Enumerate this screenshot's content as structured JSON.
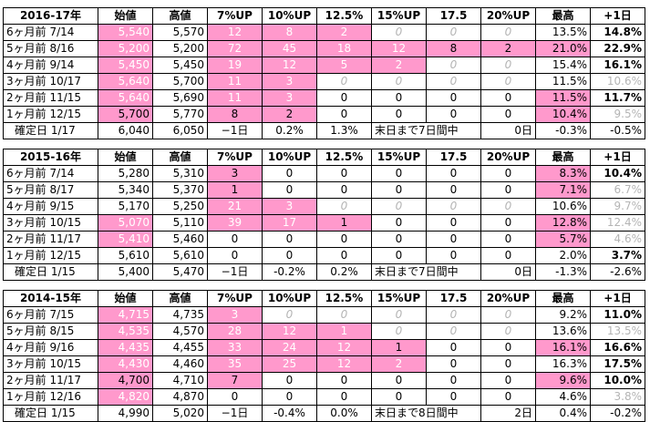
{
  "header_row": [
    "始値",
    "高値",
    "7%UP",
    "10%UP",
    "12.5%",
    "15%UP",
    "17.5",
    "20%UP",
    "最高",
    "+1日"
  ],
  "blocks": [
    {
      "year": "2016-17年",
      "rows": [
        {
          "label": "6ヶ月前  7/14",
          "cells": [
            "5,540",
            "5,570",
            "12",
            "8",
            "2",
            "0",
            "0",
            "0",
            "13.5%",
            "14.8%"
          ]
        },
        {
          "label": "5ヶ月前  8/16",
          "cells": [
            "5,200",
            "5,200",
            "72",
            "45",
            "18",
            "12",
            "8",
            "2",
            "21.0%",
            "22.9%"
          ]
        },
        {
          "label": "4ヶ月前  9/14",
          "cells": [
            "5,450",
            "5,450",
            "19",
            "12",
            "5",
            "2",
            "0",
            "0",
            "15.4%",
            "16.1%"
          ]
        },
        {
          "label": "3ヶ月前  10/17",
          "cells": [
            "5,640",
            "5,700",
            "11",
            "3",
            "0",
            "0",
            "0",
            "0",
            "11.5%",
            "10.6%"
          ]
        },
        {
          "label": "2ヶ月前  11/15",
          "cells": [
            "5,640",
            "5,690",
            "11",
            "3",
            "0",
            "0",
            "0",
            "0",
            "11.5%",
            "11.7%"
          ]
        },
        {
          "label": "1ヶ月前  12/15",
          "cells": [
            "5,700",
            "5,770",
            "8",
            "2",
            "0",
            "0",
            "0",
            "0",
            "10.4%",
            "9.5%"
          ]
        },
        {
          "label": "確定日  1/17",
          "cells": [
            "6,040",
            "6,050",
            "−1日",
            "0.2%",
            "1.3%",
            "末日まで7日間中",
            "",
            "0日",
            "-0.3%",
            "-0.5%"
          ]
        }
      ]
    },
    {
      "year": "2015-16年",
      "rows": [
        {
          "label": "6ヶ月前  7/14",
          "cells": [
            "5,280",
            "5,310",
            "3",
            "0",
            "0",
            "0",
            "0",
            "0",
            "8.3%",
            "10.4%"
          ]
        },
        {
          "label": "5ヶ月前  8/17",
          "cells": [
            "5,340",
            "5,370",
            "1",
            "0",
            "0",
            "0",
            "0",
            "0",
            "7.1%",
            "6.7%"
          ]
        },
        {
          "label": "4ヶ月前  9/15",
          "cells": [
            "5,170",
            "5,250",
            "21",
            "3",
            "0",
            "0",
            "0",
            "0",
            "10.6%",
            "9.7%"
          ]
        },
        {
          "label": "3ヶ月前  10/15",
          "cells": [
            "5,070",
            "5,110",
            "39",
            "17",
            "1",
            "0",
            "0",
            "0",
            "12.8%",
            "12.4%"
          ]
        },
        {
          "label": "2ヶ月前  11/17",
          "cells": [
            "5,410",
            "5,460",
            "0",
            "0",
            "0",
            "0",
            "0",
            "0",
            "5.7%",
            "4.6%"
          ]
        },
        {
          "label": "1ヶ月前  12/15",
          "cells": [
            "5,610",
            "5,610",
            "0",
            "0",
            "0",
            "0",
            "0",
            "0",
            "2.0%",
            "3.7%"
          ]
        },
        {
          "label": "確定日  1/15",
          "cells": [
            "5,400",
            "5,470",
            "−1日",
            "-0.2%",
            "0.2%",
            "末日まで7日間中",
            "",
            "0日",
            "-1.3%",
            "-2.6%"
          ]
        }
      ]
    },
    {
      "year": "2014-15年",
      "rows": [
        {
          "label": "6ヶ月前  7/15",
          "cells": [
            "4,715",
            "4,735",
            "3",
            "0",
            "0",
            "0",
            "0",
            "0",
            "9.2%",
            "11.0%"
          ]
        },
        {
          "label": "5ヶ月前  8/15",
          "cells": [
            "4,535",
            "4,570",
            "28",
            "12",
            "1",
            "0",
            "0",
            "0",
            "13.6%",
            "13.5%"
          ]
        },
        {
          "label": "4ヶ月前  9/16",
          "cells": [
            "4,435",
            "4,455",
            "33",
            "24",
            "12",
            "1",
            "0",
            "0",
            "16.1%",
            "16.6%"
          ]
        },
        {
          "label": "3ヶ月前  10/15",
          "cells": [
            "4,430",
            "4,460",
            "35",
            "25",
            "12",
            "2",
            "0",
            "0",
            "16.3%",
            "17.5%"
          ]
        },
        {
          "label": "2ヶ月前  11/17",
          "cells": [
            "4,700",
            "4,710",
            "7",
            "0",
            "0",
            "0",
            "0",
            "0",
            "9.6%",
            "10.0%"
          ]
        },
        {
          "label": "1ヶ月前  12/16",
          "cells": [
            "4,820",
            "4,870",
            "0",
            "0",
            "0",
            "0",
            "0",
            "0",
            "4.6%",
            "3.8%"
          ]
        },
        {
          "label": "確定日  1/15",
          "cells": [
            "4,990",
            "5,020",
            "−1日",
            "-0.4%",
            "0.0%",
            "末日まで8日間中",
            "",
            "2日",
            "0.4%",
            "-0.2%"
          ]
        }
      ]
    }
  ],
  "colors": {
    "highlight": "#ff99cc",
    "muted": "#b4b4b4"
  }
}
